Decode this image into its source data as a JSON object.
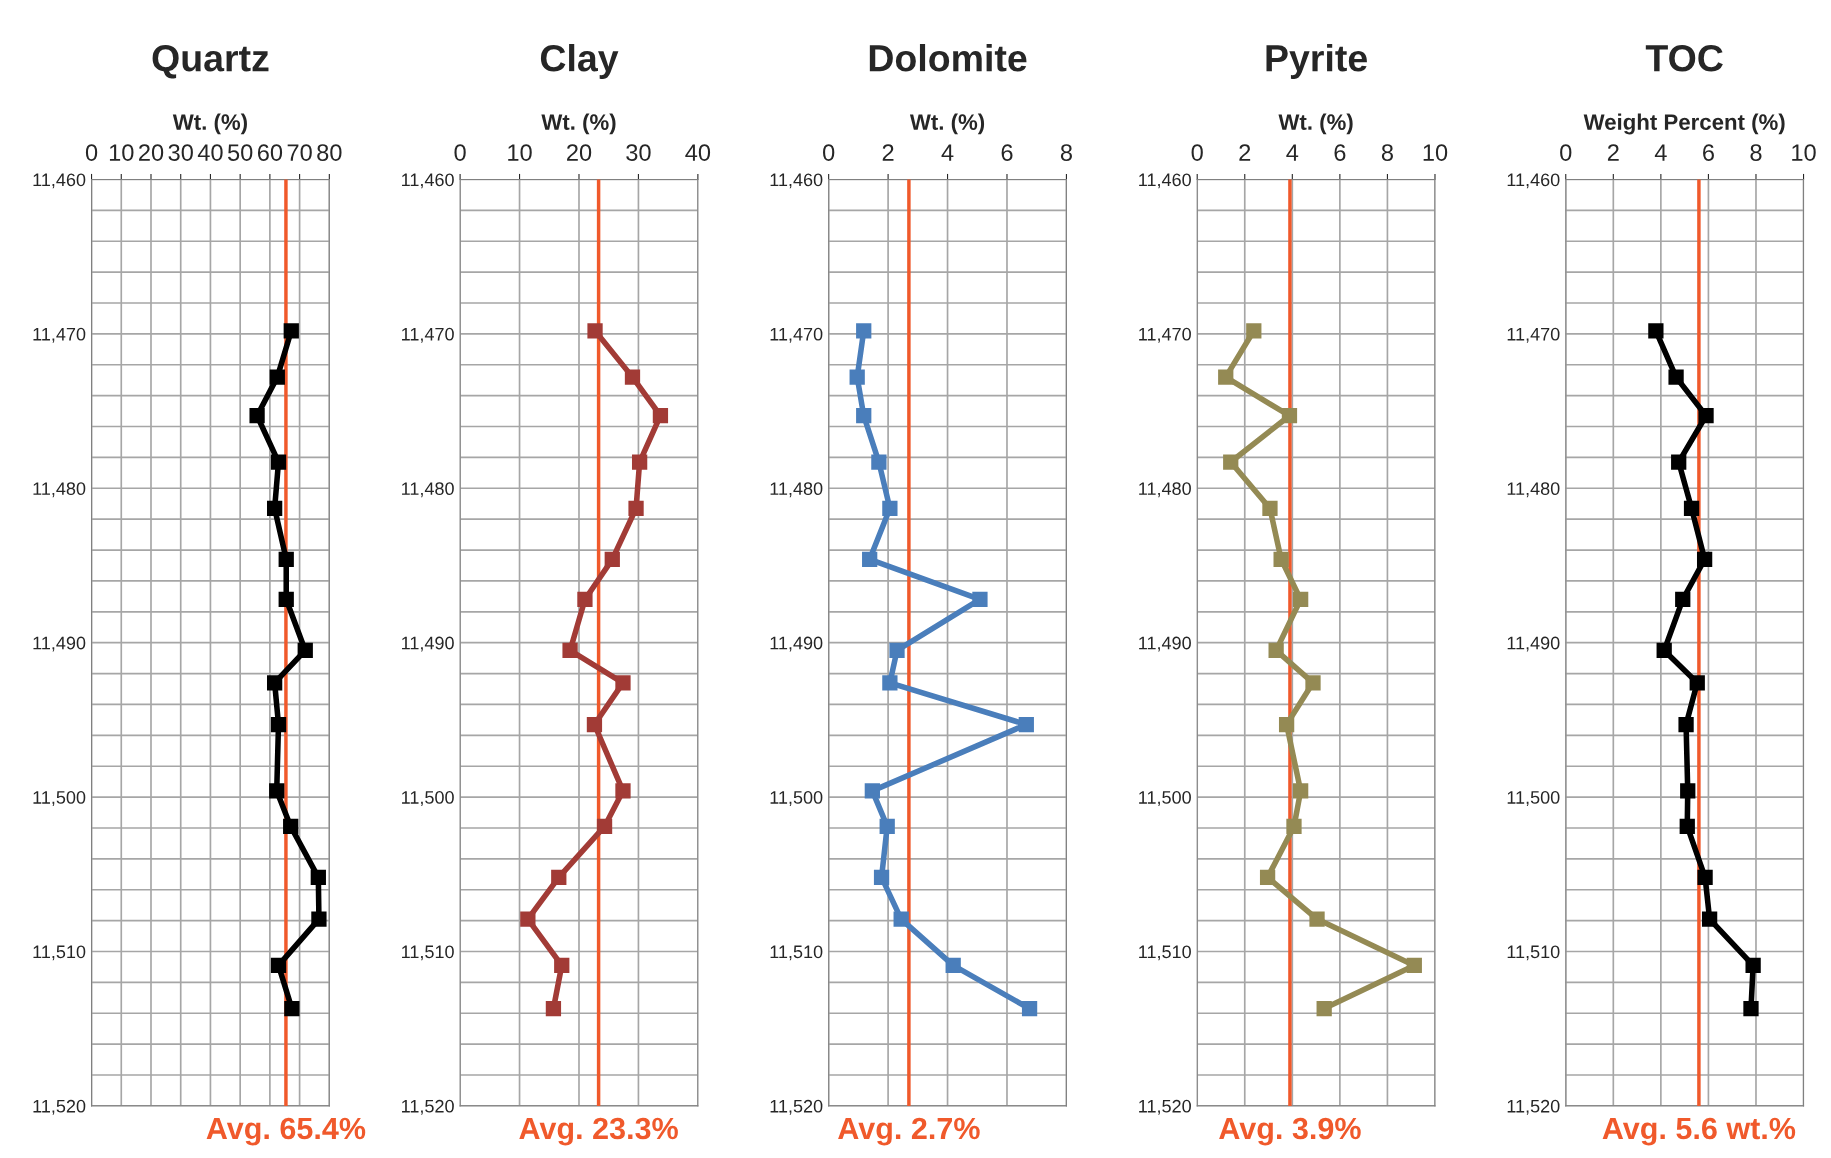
{
  "chart_data": [
    {
      "type": "line",
      "title": "Quartz",
      "xlabel": "Wt. (%)",
      "xlim": [
        0,
        80
      ],
      "xticks": [
        0,
        10,
        20,
        30,
        40,
        50,
        60,
        70,
        80
      ],
      "ylim": [
        11520,
        11460
      ],
      "yticks": [
        {
          "value": 11460,
          "label": "11,460"
        },
        {
          "value": 11462,
          "label": null
        },
        {
          "value": 11464,
          "label": null
        },
        {
          "value": 11466,
          "label": null
        },
        {
          "value": 11468,
          "label": null
        },
        {
          "value": 11470,
          "label": "11,470"
        },
        {
          "value": 11472,
          "label": null
        },
        {
          "value": 11474,
          "label": null
        },
        {
          "value": 11476,
          "label": null
        },
        {
          "value": 11478,
          "label": null
        },
        {
          "value": 11480,
          "label": "11,480"
        },
        {
          "value": 11482,
          "label": null
        },
        {
          "value": 11484,
          "label": null
        },
        {
          "value": 11486,
          "label": null
        },
        {
          "value": 11488,
          "label": null
        },
        {
          "value": 11490,
          "label": "11,490"
        },
        {
          "value": 11492,
          "label": null
        },
        {
          "value": 11494,
          "label": null
        },
        {
          "value": 11496,
          "label": null
        },
        {
          "value": 11498,
          "label": null
        },
        {
          "value": 11500,
          "label": "11,500"
        },
        {
          "value": 11502,
          "label": null
        },
        {
          "value": 11504,
          "label": null
        },
        {
          "value": 11506,
          "label": null
        },
        {
          "value": 11508,
          "label": null
        },
        {
          "value": 11510,
          "label": "11,510"
        },
        {
          "value": 11512,
          "label": null
        },
        {
          "value": 11514,
          "label": null
        },
        {
          "value": 11516,
          "label": null
        },
        {
          "value": 11518,
          "label": null
        },
        {
          "value": 11520,
          "label": "11,520"
        }
      ],
      "grid": true,
      "marker": "square",
      "legend": false,
      "series": [
        {
          "color": "#000000",
          "x": [
            67.2,
            62.5,
            55.7,
            62.9,
            61.6,
            65.5,
            65.5,
            71.9,
            61.6,
            62.9,
            62.3,
            67,
            76.3,
            76.5,
            62.9,
            67.4
          ],
          "values": [
            11469.8,
            11472.8,
            11475.3,
            11478.3,
            11481.3,
            11484.6,
            11487.2,
            11490.5,
            11492.6,
            11495.3,
            11499.6,
            11501.9,
            11505.2,
            11507.9,
            11510.9,
            11513.7
          ]
        }
      ],
      "ref_lines": [
        {
          "axis": "x",
          "value": 65.4,
          "label": "Avg. 65.4%",
          "color": "#f0592b"
        }
      ]
    },
    {
      "type": "line",
      "title": "Clay",
      "xlabel": "Wt. (%)",
      "xlim": [
        0,
        40
      ],
      "xticks": [
        0,
        10,
        20,
        30,
        40
      ],
      "ylim": [
        11520,
        11460
      ],
      "yticks": [
        {
          "value": 11460,
          "label": "11,460"
        },
        {
          "value": 11462,
          "label": null
        },
        {
          "value": 11464,
          "label": null
        },
        {
          "value": 11466,
          "label": null
        },
        {
          "value": 11468,
          "label": null
        },
        {
          "value": 11470,
          "label": "11,470"
        },
        {
          "value": 11472,
          "label": null
        },
        {
          "value": 11474,
          "label": null
        },
        {
          "value": 11476,
          "label": null
        },
        {
          "value": 11478,
          "label": null
        },
        {
          "value": 11480,
          "label": "11,480"
        },
        {
          "value": 11482,
          "label": null
        },
        {
          "value": 11484,
          "label": null
        },
        {
          "value": 11486,
          "label": null
        },
        {
          "value": 11488,
          "label": null
        },
        {
          "value": 11490,
          "label": "11,490"
        },
        {
          "value": 11492,
          "label": null
        },
        {
          "value": 11494,
          "label": null
        },
        {
          "value": 11496,
          "label": null
        },
        {
          "value": 11498,
          "label": null
        },
        {
          "value": 11500,
          "label": "11,500"
        },
        {
          "value": 11502,
          "label": null
        },
        {
          "value": 11504,
          "label": null
        },
        {
          "value": 11506,
          "label": null
        },
        {
          "value": 11508,
          "label": null
        },
        {
          "value": 11510,
          "label": "11,510"
        },
        {
          "value": 11512,
          "label": null
        },
        {
          "value": 11514,
          "label": null
        },
        {
          "value": 11516,
          "label": null
        },
        {
          "value": 11518,
          "label": null
        },
        {
          "value": 11520,
          "label": "11,520"
        }
      ],
      "grid": true,
      "marker": "square",
      "legend": false,
      "series": [
        {
          "color": "#a23b36",
          "x": [
            22.7,
            29,
            33.7,
            30.2,
            29.6,
            25.6,
            21,
            18.5,
            27.4,
            22.6,
            27.4,
            24.3,
            16.6,
            11.4,
            17.1,
            15.7
          ],
          "values": [
            11469.8,
            11472.8,
            11475.3,
            11478.3,
            11481.3,
            11484.6,
            11487.2,
            11490.5,
            11492.6,
            11495.3,
            11499.6,
            11501.9,
            11505.2,
            11507.9,
            11510.9,
            11513.7
          ]
        }
      ],
      "ref_lines": [
        {
          "axis": "x",
          "value": 23.3,
          "label": "Avg. 23.3%",
          "color": "#f0592b"
        }
      ]
    },
    {
      "type": "line",
      "title": "Dolomite",
      "xlabel": "Wt. (%)",
      "xlim": [
        0,
        8
      ],
      "xticks": [
        0,
        2,
        4,
        6,
        8
      ],
      "ylim": [
        11520,
        11460
      ],
      "yticks": [
        {
          "value": 11460,
          "label": "11,460"
        },
        {
          "value": 11462,
          "label": null
        },
        {
          "value": 11464,
          "label": null
        },
        {
          "value": 11466,
          "label": null
        },
        {
          "value": 11468,
          "label": null
        },
        {
          "value": 11470,
          "label": "11,470"
        },
        {
          "value": 11472,
          "label": null
        },
        {
          "value": 11474,
          "label": null
        },
        {
          "value": 11476,
          "label": null
        },
        {
          "value": 11478,
          "label": null
        },
        {
          "value": 11480,
          "label": "11,480"
        },
        {
          "value": 11482,
          "label": null
        },
        {
          "value": 11484,
          "label": null
        },
        {
          "value": 11486,
          "label": null
        },
        {
          "value": 11488,
          "label": null
        },
        {
          "value": 11490,
          "label": "11,490"
        },
        {
          "value": 11492,
          "label": null
        },
        {
          "value": 11494,
          "label": null
        },
        {
          "value": 11496,
          "label": null
        },
        {
          "value": 11498,
          "label": null
        },
        {
          "value": 11500,
          "label": "11,500"
        },
        {
          "value": 11502,
          "label": null
        },
        {
          "value": 11504,
          "label": null
        },
        {
          "value": 11506,
          "label": null
        },
        {
          "value": 11508,
          "label": null
        },
        {
          "value": 11510,
          "label": "11,510"
        },
        {
          "value": 11512,
          "label": null
        },
        {
          "value": 11514,
          "label": null
        },
        {
          "value": 11516,
          "label": null
        },
        {
          "value": 11518,
          "label": null
        },
        {
          "value": 11520,
          "label": "11,520"
        }
      ],
      "grid": true,
      "marker": "square",
      "legend": false,
      "series": [
        {
          "color": "#4a7ebb",
          "x": [
            1.18,
            0.96,
            1.18,
            1.69,
            2.06,
            1.38,
            5.09,
            2.3,
            2.06,
            6.65,
            1.47,
            1.97,
            1.78,
            2.44,
            4.19,
            6.76
          ],
          "values": [
            11469.8,
            11472.8,
            11475.3,
            11478.3,
            11481.3,
            11484.6,
            11487.2,
            11490.5,
            11492.6,
            11495.3,
            11499.6,
            11501.9,
            11505.2,
            11507.9,
            11510.9,
            11513.7
          ]
        }
      ],
      "ref_lines": [
        {
          "axis": "x",
          "value": 2.7,
          "label": "Avg. 2.7%",
          "color": "#f0592b"
        }
      ]
    },
    {
      "type": "line",
      "title": "Pyrite",
      "xlabel": "Wt. (%)",
      "xlim": [
        0,
        10
      ],
      "xticks": [
        0,
        2,
        4,
        6,
        8,
        10
      ],
      "ylim": [
        11520,
        11460
      ],
      "yticks": [
        {
          "value": 11460,
          "label": "11,460"
        },
        {
          "value": 11462,
          "label": null
        },
        {
          "value": 11464,
          "label": null
        },
        {
          "value": 11466,
          "label": null
        },
        {
          "value": 11468,
          "label": null
        },
        {
          "value": 11470,
          "label": "11,470"
        },
        {
          "value": 11472,
          "label": null
        },
        {
          "value": 11474,
          "label": null
        },
        {
          "value": 11476,
          "label": null
        },
        {
          "value": 11478,
          "label": null
        },
        {
          "value": 11480,
          "label": "11,480"
        },
        {
          "value": 11482,
          "label": null
        },
        {
          "value": 11484,
          "label": null
        },
        {
          "value": 11486,
          "label": null
        },
        {
          "value": 11488,
          "label": null
        },
        {
          "value": 11490,
          "label": "11,490"
        },
        {
          "value": 11492,
          "label": null
        },
        {
          "value": 11494,
          "label": null
        },
        {
          "value": 11496,
          "label": null
        },
        {
          "value": 11498,
          "label": null
        },
        {
          "value": 11500,
          "label": "11,500"
        },
        {
          "value": 11502,
          "label": null
        },
        {
          "value": 11504,
          "label": null
        },
        {
          "value": 11506,
          "label": null
        },
        {
          "value": 11508,
          "label": null
        },
        {
          "value": 11510,
          "label": "11,510"
        },
        {
          "value": 11512,
          "label": null
        },
        {
          "value": 11514,
          "label": null
        },
        {
          "value": 11516,
          "label": null
        },
        {
          "value": 11518,
          "label": null
        },
        {
          "value": 11520,
          "label": "11,520"
        }
      ],
      "grid": true,
      "marker": "square",
      "legend": false,
      "series": [
        {
          "color": "#948a54",
          "x": [
            2.38,
            1.2,
            3.88,
            1.41,
            3.06,
            3.53,
            4.35,
            3.32,
            4.87,
            3.76,
            4.35,
            4.07,
            2.96,
            5.04,
            9.13,
            5.34
          ],
          "values": [
            11469.8,
            11472.8,
            11475.3,
            11478.3,
            11481.3,
            11484.6,
            11487.2,
            11490.5,
            11492.6,
            11495.3,
            11499.6,
            11501.9,
            11505.2,
            11507.9,
            11510.9,
            11513.7
          ]
        }
      ],
      "ref_lines": [
        {
          "axis": "x",
          "value": 3.9,
          "label": "Avg. 3.9%",
          "color": "#f0592b"
        }
      ]
    },
    {
      "type": "line",
      "title": "TOC",
      "xlabel": "Weight Percent (%)",
      "xlim": [
        0,
        10
      ],
      "xticks": [
        0,
        2,
        4,
        6,
        8,
        10
      ],
      "ylim": [
        11520,
        11460
      ],
      "yticks": [
        {
          "value": 11460,
          "label": "11,460"
        },
        {
          "value": 11462,
          "label": null
        },
        {
          "value": 11464,
          "label": null
        },
        {
          "value": 11466,
          "label": null
        },
        {
          "value": 11468,
          "label": null
        },
        {
          "value": 11470,
          "label": "11,470"
        },
        {
          "value": 11472,
          "label": null
        },
        {
          "value": 11474,
          "label": null
        },
        {
          "value": 11476,
          "label": null
        },
        {
          "value": 11478,
          "label": null
        },
        {
          "value": 11480,
          "label": "11,480"
        },
        {
          "value": 11482,
          "label": null
        },
        {
          "value": 11484,
          "label": null
        },
        {
          "value": 11486,
          "label": null
        },
        {
          "value": 11488,
          "label": null
        },
        {
          "value": 11490,
          "label": "11,490"
        },
        {
          "value": 11492,
          "label": null
        },
        {
          "value": 11494,
          "label": null
        },
        {
          "value": 11496,
          "label": null
        },
        {
          "value": 11498,
          "label": null
        },
        {
          "value": 11500,
          "label": "11,500"
        },
        {
          "value": 11502,
          "label": null
        },
        {
          "value": 11504,
          "label": null
        },
        {
          "value": 11506,
          "label": null
        },
        {
          "value": 11508,
          "label": null
        },
        {
          "value": 11510,
          "label": "11,510"
        },
        {
          "value": 11512,
          "label": null
        },
        {
          "value": 11514,
          "label": null
        },
        {
          "value": 11516,
          "label": null
        },
        {
          "value": 11518,
          "label": null
        },
        {
          "value": 11520,
          "label": "11,520"
        }
      ],
      "grid": true,
      "marker": "square",
      "legend": false,
      "series": [
        {
          "color": "#000000",
          "x": [
            3.79,
            4.64,
            5.9,
            4.75,
            5.29,
            5.84,
            4.92,
            4.14,
            5.53,
            5.06,
            5.13,
            5.11,
            5.86,
            6.05,
            7.88,
            7.79
          ],
          "values": [
            11469.8,
            11472.8,
            11475.3,
            11478.3,
            11481.3,
            11484.6,
            11487.2,
            11490.5,
            11492.6,
            11495.3,
            11499.6,
            11501.9,
            11505.2,
            11507.9,
            11510.9,
            11513.7
          ]
        }
      ],
      "ref_lines": [
        {
          "axis": "x",
          "value": 5.6,
          "label": "Avg. 5.6 wt.%",
          "color": "#f0592b"
        }
      ]
    }
  ]
}
